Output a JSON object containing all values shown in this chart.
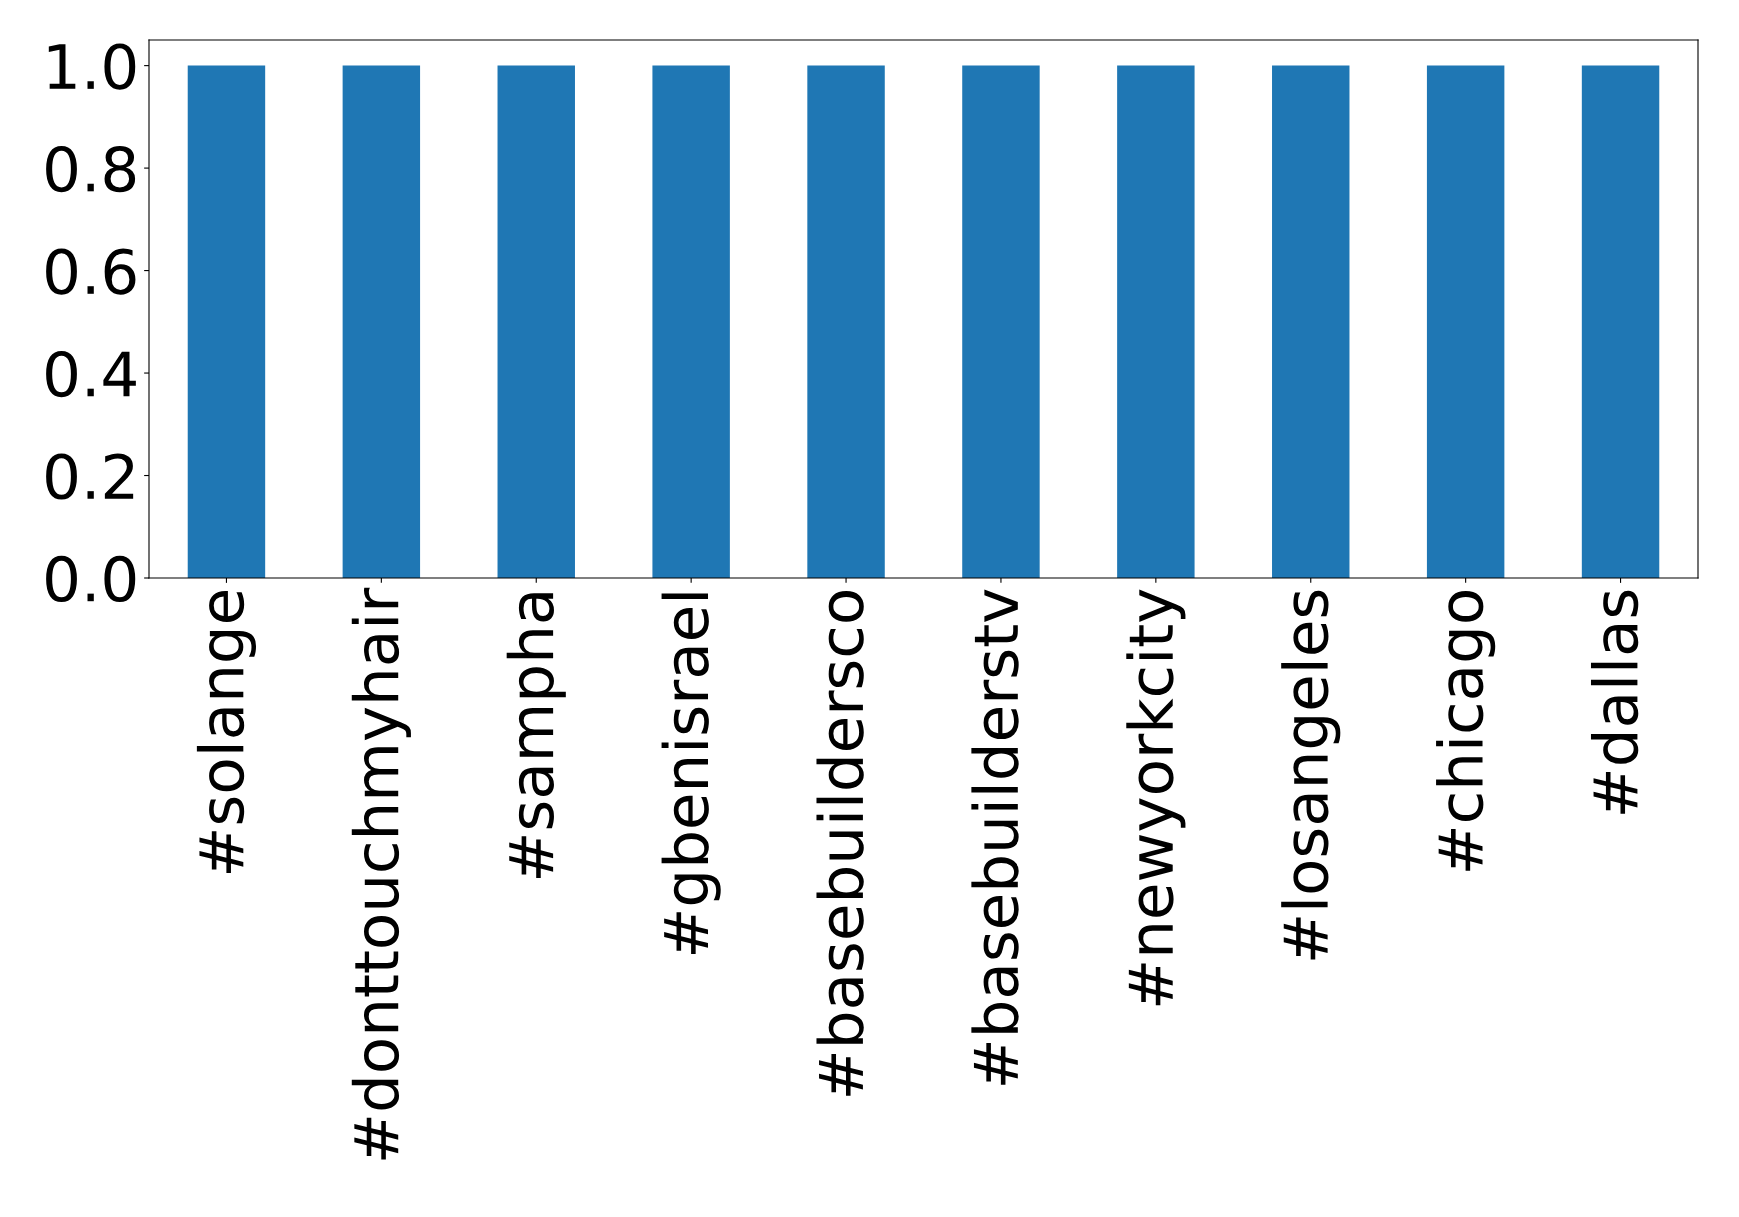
{
  "chart_data": {
    "type": "bar",
    "categories": [
      "#solange",
      "#donttouchmyhair",
      "#sampha",
      "#gbenisrael",
      "#basebuildersco",
      "#basebuilderstv",
      "#newyorkcity",
      "#losangeles",
      "#chicago",
      "#dallas"
    ],
    "values": [
      1.0,
      1.0,
      1.0,
      1.0,
      1.0,
      1.0,
      1.0,
      1.0,
      1.0,
      1.0
    ],
    "color": "#1f77b4",
    "ylim": [
      0,
      1.05
    ],
    "yticks": [
      {
        "value": 0,
        "label": "0.0"
      },
      {
        "value": 0.2,
        "label": "0.2"
      },
      {
        "value": 0.4,
        "label": "0.4"
      },
      {
        "value": 0.6,
        "label": "0.6"
      },
      {
        "value": 0.8,
        "label": "0.8"
      },
      {
        "value": 1.0,
        "label": "1.0"
      }
    ],
    "grid": false,
    "legend": false
  }
}
